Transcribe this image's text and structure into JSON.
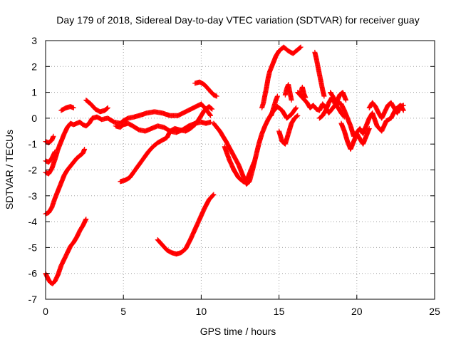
{
  "chart_data": {
    "type": "scatter",
    "title": "Day 179 of 2018, Sidereal Day-to-day VTEC variation (SDTVAR) for receiver guay",
    "xlabel": "GPS time / hours",
    "ylabel": "SDTVAR / TECUs",
    "xlim": [
      0,
      25
    ],
    "ylim": [
      -7,
      3
    ],
    "xticks": [
      "0",
      "5",
      "10",
      "15",
      "20",
      "25"
    ],
    "yticks": [
      "3",
      "2",
      "1",
      "0",
      "-1",
      "-2",
      "-3",
      "-4",
      "-5",
      "-6",
      "-7"
    ],
    "grid": true,
    "marker": "+",
    "color": "#ff0000",
    "series": [
      {
        "points": [
          [
            0.0,
            -6.0
          ],
          [
            0.15,
            -6.2
          ],
          [
            0.3,
            -6.35
          ],
          [
            0.45,
            -6.4
          ],
          [
            0.6,
            -6.3
          ],
          [
            0.8,
            -6.05
          ],
          [
            1.0,
            -5.7
          ],
          [
            1.2,
            -5.45
          ],
          [
            1.4,
            -5.2
          ],
          [
            1.6,
            -4.95
          ],
          [
            1.8,
            -4.8
          ],
          [
            2.0,
            -4.6
          ],
          [
            2.2,
            -4.35
          ],
          [
            2.4,
            -4.15
          ],
          [
            2.6,
            -3.9
          ]
        ]
      },
      {
        "points": [
          [
            0.0,
            -3.7
          ],
          [
            0.2,
            -3.65
          ],
          [
            0.4,
            -3.45
          ],
          [
            0.6,
            -3.1
          ],
          [
            0.8,
            -2.8
          ],
          [
            1.0,
            -2.5
          ],
          [
            1.2,
            -2.2
          ],
          [
            1.4,
            -2.0
          ],
          [
            1.6,
            -1.85
          ],
          [
            1.8,
            -1.7
          ],
          [
            2.0,
            -1.55
          ],
          [
            2.2,
            -1.45
          ],
          [
            2.4,
            -1.35
          ],
          [
            2.5,
            -1.2
          ]
        ]
      },
      {
        "points": [
          [
            0.0,
            -2.1
          ],
          [
            0.2,
            -2.15
          ],
          [
            0.4,
            -1.95
          ],
          [
            0.6,
            -1.6
          ],
          [
            0.8,
            -1.2
          ],
          [
            1.0,
            -0.9
          ],
          [
            1.2,
            -0.6
          ],
          [
            1.4,
            -0.35
          ],
          [
            1.6,
            -0.2
          ],
          [
            1.8,
            -0.25
          ],
          [
            2.0,
            -0.2
          ],
          [
            2.2,
            -0.15
          ],
          [
            2.4,
            -0.25
          ],
          [
            2.6,
            -0.3
          ],
          [
            2.8,
            -0.2
          ],
          [
            3.0,
            0.0
          ],
          [
            3.3,
            0.05
          ],
          [
            3.6,
            -0.05
          ],
          [
            4.0,
            0.0
          ],
          [
            4.4,
            -0.15
          ],
          [
            4.8,
            -0.2
          ],
          [
            5.0,
            -0.1
          ],
          [
            5.3,
            0.0
          ],
          [
            5.7,
            0.05
          ],
          [
            6.0,
            0.1
          ],
          [
            6.5,
            0.2
          ],
          [
            7.0,
            0.25
          ],
          [
            7.5,
            0.2
          ],
          [
            8.0,
            0.1
          ],
          [
            8.5,
            0.1
          ],
          [
            9.0,
            0.25
          ],
          [
            9.5,
            0.4
          ],
          [
            10.0,
            0.55
          ],
          [
            10.3,
            0.35
          ],
          [
            10.6,
            0.1
          ]
        ]
      },
      {
        "points": [
          [
            0.0,
            -0.9
          ],
          [
            0.2,
            -0.95
          ],
          [
            0.4,
            -0.85
          ],
          [
            0.5,
            -0.7
          ]
        ]
      },
      {
        "points": [
          [
            0.0,
            -1.65
          ],
          [
            0.2,
            -1.7
          ],
          [
            0.4,
            -1.55
          ],
          [
            0.6,
            -1.3
          ]
        ]
      },
      {
        "points": [
          [
            1.0,
            0.3
          ],
          [
            1.3,
            0.4
          ],
          [
            1.6,
            0.45
          ],
          [
            1.8,
            0.4
          ]
        ]
      },
      {
        "points": [
          [
            2.6,
            0.7
          ],
          [
            2.9,
            0.55
          ],
          [
            3.2,
            0.35
          ],
          [
            3.5,
            0.25
          ],
          [
            3.8,
            0.3
          ],
          [
            4.0,
            0.4
          ]
        ]
      },
      {
        "points": [
          [
            4.5,
            -0.3
          ],
          [
            4.8,
            -0.35
          ],
          [
            5.0,
            -0.25
          ],
          [
            5.3,
            -0.2
          ],
          [
            5.6,
            -0.3
          ],
          [
            6.0,
            -0.45
          ],
          [
            6.4,
            -0.5
          ],
          [
            6.8,
            -0.4
          ],
          [
            7.2,
            -0.3
          ],
          [
            7.6,
            -0.35
          ],
          [
            8.0,
            -0.5
          ],
          [
            8.4,
            -0.55
          ],
          [
            8.8,
            -0.45
          ],
          [
            9.2,
            -0.3
          ],
          [
            9.6,
            -0.2
          ],
          [
            10.0,
            -0.15
          ],
          [
            10.3,
            -0.2
          ],
          [
            10.6,
            -0.15
          ]
        ]
      },
      {
        "points": [
          [
            4.8,
            -2.45
          ],
          [
            5.1,
            -2.4
          ],
          [
            5.4,
            -2.3
          ],
          [
            5.7,
            -2.05
          ],
          [
            6.0,
            -1.8
          ],
          [
            6.3,
            -1.55
          ],
          [
            6.6,
            -1.3
          ],
          [
            6.9,
            -1.1
          ],
          [
            7.2,
            -0.95
          ],
          [
            7.5,
            -0.85
          ],
          [
            7.8,
            -0.75
          ],
          [
            8.0,
            -0.5
          ],
          [
            8.3,
            -0.4
          ],
          [
            8.6,
            -0.45
          ],
          [
            9.0,
            -0.5
          ],
          [
            9.3,
            -0.4
          ],
          [
            9.6,
            -0.25
          ],
          [
            9.9,
            0.0
          ],
          [
            10.2,
            0.3
          ],
          [
            10.5,
            0.45
          ],
          [
            10.7,
            0.35
          ]
        ]
      },
      {
        "points": [
          [
            7.2,
            -4.7
          ],
          [
            7.5,
            -4.9
          ],
          [
            7.8,
            -5.1
          ],
          [
            8.1,
            -5.2
          ],
          [
            8.4,
            -5.25
          ],
          [
            8.7,
            -5.2
          ],
          [
            9.0,
            -5.05
          ],
          [
            9.3,
            -4.7
          ],
          [
            9.6,
            -4.3
          ],
          [
            9.9,
            -3.9
          ],
          [
            10.2,
            -3.5
          ],
          [
            10.5,
            -3.15
          ],
          [
            10.8,
            -2.95
          ]
        ]
      },
      {
        "points": [
          [
            9.6,
            1.35
          ],
          [
            9.9,
            1.4
          ],
          [
            10.2,
            1.3
          ],
          [
            10.5,
            1.1
          ],
          [
            10.8,
            0.9
          ],
          [
            11.0,
            0.85
          ]
        ]
      },
      {
        "points": [
          [
            10.8,
            -0.2
          ],
          [
            11.2,
            -0.5
          ],
          [
            11.6,
            -0.9
          ],
          [
            12.0,
            -1.35
          ],
          [
            12.4,
            -1.8
          ],
          [
            12.7,
            -2.25
          ],
          [
            12.9,
            -2.55
          ],
          [
            13.1,
            -2.45
          ],
          [
            13.3,
            -2.0
          ],
          [
            13.5,
            -1.5
          ],
          [
            13.7,
            -1.0
          ],
          [
            13.9,
            -0.6
          ],
          [
            14.1,
            -0.3
          ],
          [
            14.3,
            -0.05
          ],
          [
            14.6,
            0.25
          ],
          [
            14.9,
            0.45
          ],
          [
            15.2,
            0.3
          ],
          [
            15.5,
            0.0
          ],
          [
            15.8,
            0.15
          ],
          [
            16.1,
            0.4
          ]
        ]
      },
      {
        "points": [
          [
            11.5,
            -1.1
          ],
          [
            11.8,
            -1.6
          ],
          [
            12.1,
            -2.0
          ],
          [
            12.4,
            -2.3
          ],
          [
            12.7,
            -2.45
          ],
          [
            13.0,
            -2.3
          ],
          [
            13.2,
            -2.0
          ],
          [
            13.4,
            -1.7
          ]
        ]
      },
      {
        "points": [
          [
            13.9,
            0.4
          ],
          [
            14.0,
            0.6
          ],
          [
            14.1,
            0.9
          ],
          [
            14.2,
            1.2
          ],
          [
            14.3,
            1.55
          ],
          [
            14.4,
            1.8
          ],
          [
            14.6,
            2.1
          ],
          [
            14.8,
            2.4
          ],
          [
            15.0,
            2.6
          ],
          [
            15.3,
            2.75
          ],
          [
            15.6,
            2.6
          ],
          [
            15.9,
            2.5
          ],
          [
            16.2,
            2.65
          ],
          [
            16.4,
            2.75
          ]
        ]
      },
      {
        "points": [
          [
            14.5,
            0.1
          ],
          [
            14.6,
            0.3
          ],
          [
            14.7,
            0.5
          ],
          [
            14.8,
            0.7
          ],
          [
            14.9,
            0.85
          ]
        ]
      },
      {
        "points": [
          [
            15.0,
            -0.5
          ],
          [
            15.2,
            -0.9
          ],
          [
            15.4,
            -1.0
          ],
          [
            15.6,
            -0.6
          ],
          [
            15.8,
            -0.2
          ],
          [
            16.0,
            0.0
          ],
          [
            16.2,
            0.1
          ]
        ]
      },
      {
        "points": [
          [
            15.4,
            0.9
          ],
          [
            15.5,
            1.15
          ],
          [
            15.6,
            1.3
          ],
          [
            15.7,
            1.0
          ],
          [
            15.8,
            0.7
          ]
        ]
      },
      {
        "points": [
          [
            16.2,
            1.0
          ],
          [
            16.5,
            0.8
          ],
          [
            16.8,
            0.6
          ],
          [
            17.0,
            0.4
          ],
          [
            17.2,
            0.5
          ],
          [
            17.4,
            0.35
          ],
          [
            17.6,
            0.3
          ],
          [
            17.8,
            0.55
          ],
          [
            18.0,
            0.4
          ],
          [
            18.2,
            0.2
          ],
          [
            18.4,
            0.35
          ],
          [
            18.6,
            0.5
          ],
          [
            18.8,
            0.6
          ],
          [
            19.0,
            0.55
          ],
          [
            19.2,
            0.3
          ],
          [
            19.4,
            0.0
          ],
          [
            19.6,
            -0.3
          ],
          [
            19.8,
            -0.7
          ],
          [
            20.0,
            -0.55
          ],
          [
            20.2,
            -0.4
          ],
          [
            20.4,
            -0.6
          ],
          [
            20.6,
            -0.3
          ],
          [
            20.8,
            0.0
          ],
          [
            21.0,
            0.2
          ],
          [
            21.3,
            -0.3
          ],
          [
            21.6,
            -0.5
          ],
          [
            21.9,
            -0.1
          ],
          [
            22.2,
            0.0
          ],
          [
            22.5,
            0.35
          ],
          [
            22.8,
            0.5
          ],
          [
            23.0,
            0.3
          ]
        ]
      },
      {
        "points": [
          [
            16.4,
            1.0
          ],
          [
            16.5,
            1.2
          ],
          [
            16.6,
            0.95
          ],
          [
            16.7,
            0.8
          ]
        ]
      },
      {
        "points": [
          [
            17.3,
            2.55
          ],
          [
            17.4,
            2.3
          ],
          [
            17.5,
            2.0
          ],
          [
            17.6,
            1.7
          ],
          [
            17.7,
            1.4
          ],
          [
            17.8,
            1.1
          ],
          [
            17.9,
            0.85
          ]
        ]
      },
      {
        "points": [
          [
            17.6,
            0.0
          ],
          [
            17.8,
            0.1
          ],
          [
            18.0,
            0.3
          ],
          [
            18.2,
            0.6
          ],
          [
            18.4,
            0.8
          ],
          [
            18.6,
            0.55
          ],
          [
            18.8,
            0.4
          ],
          [
            19.0,
            0.2
          ],
          [
            19.2,
            0.05
          ]
        ]
      },
      {
        "points": [
          [
            18.3,
            1.0
          ],
          [
            18.5,
            0.8
          ],
          [
            18.7,
            0.6
          ],
          [
            18.9,
            0.9
          ],
          [
            19.1,
            1.0
          ],
          [
            19.3,
            0.7
          ]
        ]
      },
      {
        "points": [
          [
            19.0,
            -0.2
          ],
          [
            19.2,
            -0.5
          ],
          [
            19.4,
            -0.9
          ],
          [
            19.6,
            -1.2
          ],
          [
            19.8,
            -0.9
          ],
          [
            20.0,
            -0.6
          ],
          [
            20.2,
            -0.8
          ],
          [
            20.4,
            -1.0
          ],
          [
            20.6,
            -0.7
          ],
          [
            20.8,
            -0.4
          ]
        ]
      },
      {
        "points": [
          [
            20.8,
            0.4
          ],
          [
            21.0,
            0.6
          ],
          [
            21.2,
            0.45
          ],
          [
            21.4,
            0.2
          ],
          [
            21.6,
            0.0
          ],
          [
            21.8,
            0.25
          ],
          [
            22.0,
            0.5
          ],
          [
            22.2,
            0.6
          ],
          [
            22.4,
            0.4
          ],
          [
            22.6,
            0.2
          ],
          [
            22.8,
            0.45
          ],
          [
            23.0,
            0.5
          ]
        ]
      }
    ]
  }
}
